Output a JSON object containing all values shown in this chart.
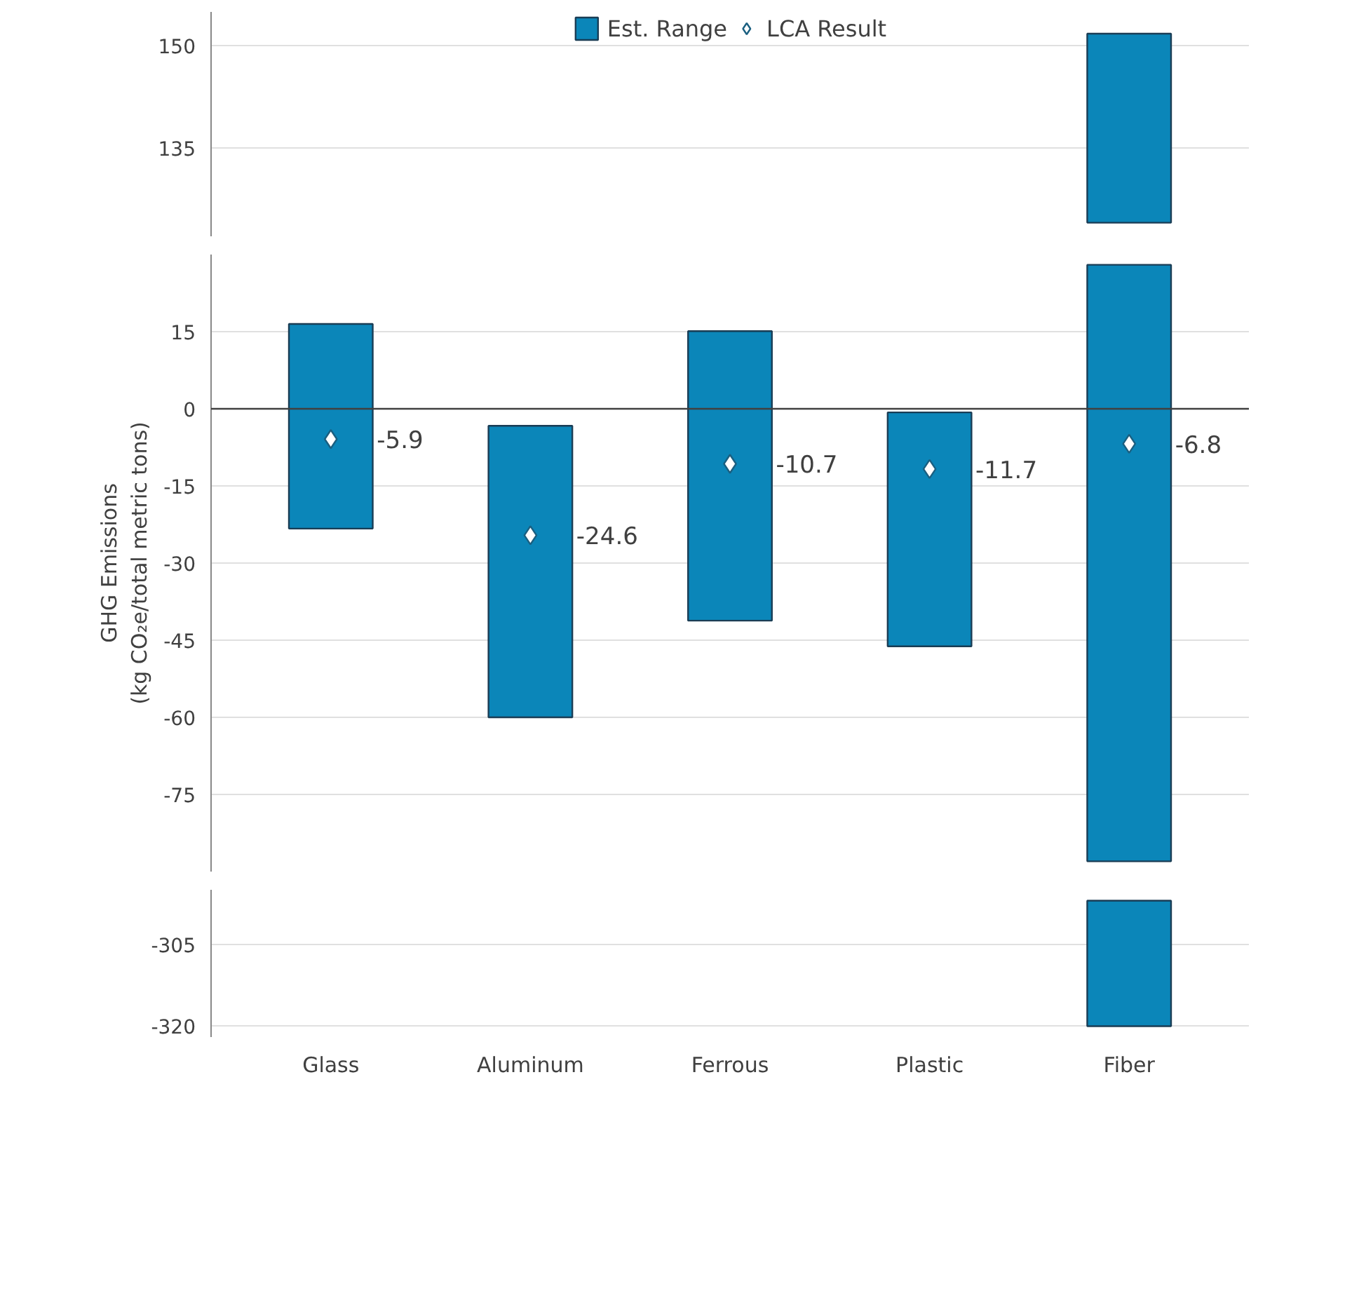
{
  "chart_data": [
    {
      "type": "bar",
      "categories": [
        null,
        null,
        null,
        null,
        null
      ],
      "series": [
        {
          "name": "Est. Range",
          "color": "#0b86b9",
          "values": [
            null,
            null,
            null,
            null,
            27.8
          ],
          "base": [
            null,
            null,
            null,
            null,
            124
          ]
        },
        {
          "name": "LCA Result",
          "type": "scatter",
          "color": "#ffffff",
          "values": [
            null,
            null,
            null,
            null,
            null
          ]
        }
      ],
      "ylim": [
        122,
        155
      ],
      "yticks": [
        150,
        135
      ],
      "grid": "y",
      "legend": "top",
      "tick_labels": "y",
      "marker": "diamond"
    },
    {
      "type": "bar",
      "categories": [
        null,
        null,
        null,
        null,
        null
      ],
      "ylabel": "GHG Emissions\n(kg CO₂e/total metric tons)",
      "series": [
        {
          "color": "#0b86b9",
          "values": [
            39.8,
            56.7,
            56.3,
            45.5,
            116
          ],
          "base": [
            -23.3,
            -60,
            -41.2,
            -46.2,
            -88
          ]
        },
        {
          "type": "scatter",
          "color": "#ffffff",
          "values": [
            -5.9,
            -24.6,
            -10.7,
            -11.7,
            -6.8
          ],
          "value_labels": [
            "-5.9",
            "-24.6",
            "-10.7",
            "-11.7",
            "-6.8"
          ]
        }
      ],
      "ylim": [
        -90,
        30
      ],
      "yticks": [
        15,
        0,
        -15,
        -30,
        -45,
        -60,
        -75
      ],
      "grid": "y",
      "tick_labels": "y",
      "marker": "diamond",
      "ref_lines": [
        {
          "axis": "y",
          "value": 0,
          "color": "#404040"
        }
      ]
    },
    {
      "type": "bar",
      "categories": [
        "Glass",
        "Aluminum",
        "Ferrous",
        "Plastic",
        "Fiber"
      ],
      "series": [
        {
          "color": "#0b86b9",
          "values": [
            null,
            null,
            null,
            null,
            23
          ],
          "base": [
            null,
            null,
            null,
            null,
            -320
          ]
        }
      ],
      "ylim": [
        -322,
        -295
      ],
      "yticks": [
        -305,
        -320
      ],
      "grid": "y"
    }
  ]
}
